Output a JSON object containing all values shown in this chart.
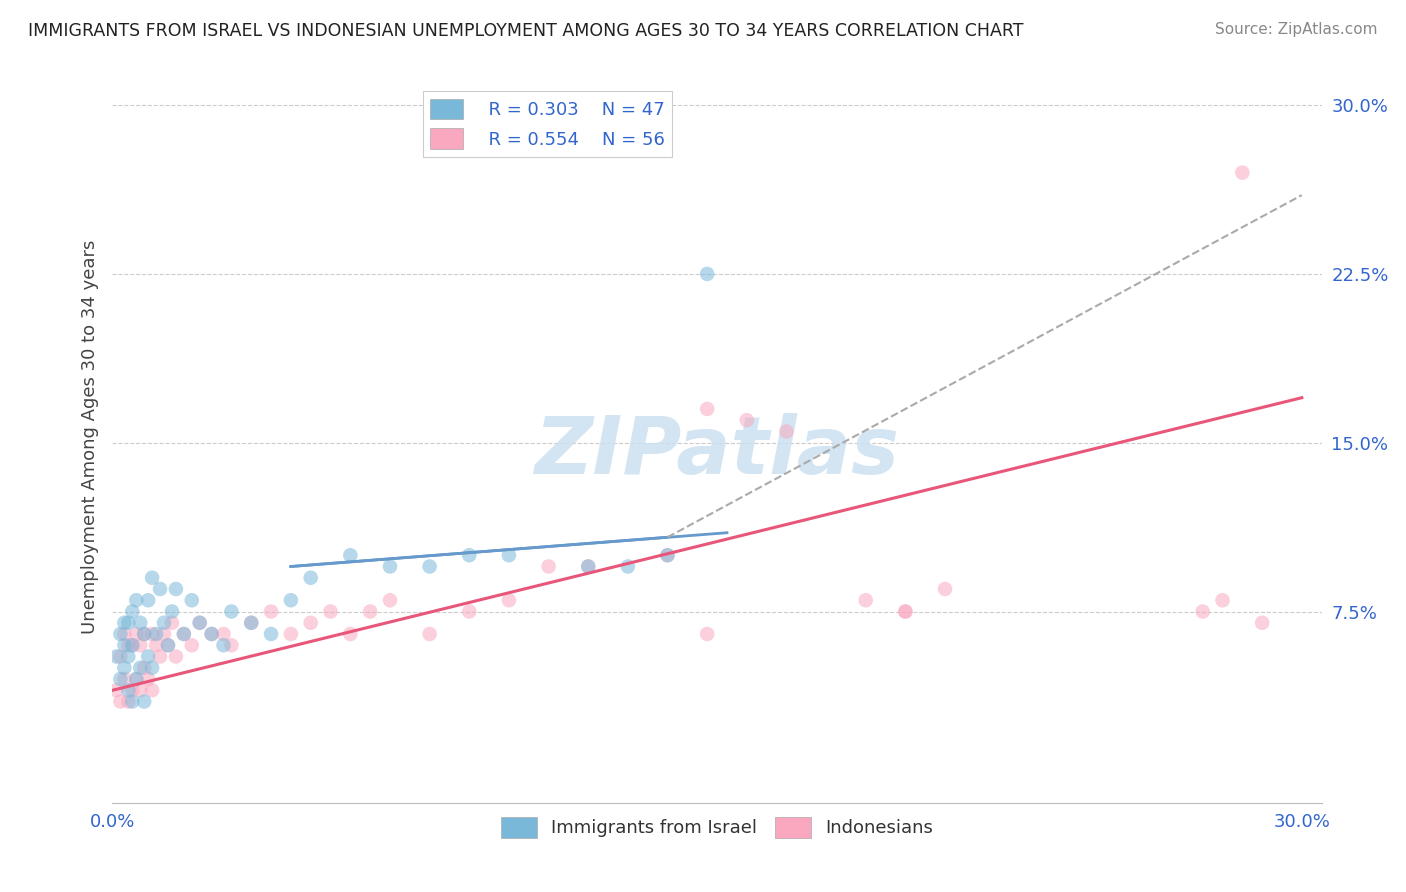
{
  "title": "IMMIGRANTS FROM ISRAEL VS INDONESIAN UNEMPLOYMENT AMONG AGES 30 TO 34 YEARS CORRELATION CHART",
  "source": "Source: ZipAtlas.com",
  "ylabel": "Unemployment Among Ages 30 to 34 years",
  "xlim": [
    0.0,
    0.305
  ],
  "ylim": [
    -0.01,
    0.315
  ],
  "xtick_positions": [
    0.0,
    0.05,
    0.1,
    0.15,
    0.2,
    0.25,
    0.3
  ],
  "xtick_labels": [
    "0.0%",
    "",
    "",
    "",
    "",
    "",
    "30.0%"
  ],
  "yticks_right": [
    0.075,
    0.15,
    0.225,
    0.3
  ],
  "ytick_labels_right": [
    "7.5%",
    "15.0%",
    "22.5%",
    "30.0%"
  ],
  "color_israel": "#7ab8d9",
  "color_indonesia": "#f9a8c0",
  "color_israel_line": "#6699cc",
  "color_indonesia_line": "#e8567a",
  "watermark_color": "#cce0f0",
  "israel_x": [
    0.001,
    0.002,
    0.002,
    0.003,
    0.003,
    0.003,
    0.004,
    0.004,
    0.004,
    0.005,
    0.005,
    0.005,
    0.006,
    0.006,
    0.007,
    0.007,
    0.008,
    0.008,
    0.009,
    0.009,
    0.01,
    0.01,
    0.011,
    0.012,
    0.013,
    0.014,
    0.015,
    0.016,
    0.018,
    0.02,
    0.022,
    0.025,
    0.028,
    0.03,
    0.035,
    0.04,
    0.045,
    0.05,
    0.06,
    0.07,
    0.08,
    0.09,
    0.1,
    0.12,
    0.13,
    0.14,
    0.15
  ],
  "israel_y": [
    0.055,
    0.045,
    0.065,
    0.05,
    0.06,
    0.07,
    0.04,
    0.055,
    0.07,
    0.035,
    0.06,
    0.075,
    0.045,
    0.08,
    0.05,
    0.07,
    0.035,
    0.065,
    0.055,
    0.08,
    0.05,
    0.09,
    0.065,
    0.085,
    0.07,
    0.06,
    0.075,
    0.085,
    0.065,
    0.08,
    0.07,
    0.065,
    0.06,
    0.075,
    0.07,
    0.065,
    0.08,
    0.09,
    0.1,
    0.095,
    0.095,
    0.1,
    0.1,
    0.095,
    0.095,
    0.1,
    0.225
  ],
  "indonesia_x": [
    0.001,
    0.002,
    0.002,
    0.003,
    0.003,
    0.004,
    0.004,
    0.005,
    0.005,
    0.006,
    0.006,
    0.007,
    0.007,
    0.008,
    0.008,
    0.009,
    0.01,
    0.01,
    0.011,
    0.012,
    0.013,
    0.014,
    0.015,
    0.016,
    0.018,
    0.02,
    0.022,
    0.025,
    0.028,
    0.03,
    0.035,
    0.04,
    0.045,
    0.05,
    0.055,
    0.06,
    0.065,
    0.07,
    0.08,
    0.09,
    0.1,
    0.11,
    0.12,
    0.14,
    0.15,
    0.16,
    0.17,
    0.19,
    0.2,
    0.21,
    0.15,
    0.2,
    0.275,
    0.28,
    0.285,
    0.29
  ],
  "indonesia_y": [
    0.04,
    0.035,
    0.055,
    0.045,
    0.065,
    0.035,
    0.06,
    0.04,
    0.06,
    0.045,
    0.065,
    0.04,
    0.06,
    0.05,
    0.065,
    0.045,
    0.04,
    0.065,
    0.06,
    0.055,
    0.065,
    0.06,
    0.07,
    0.055,
    0.065,
    0.06,
    0.07,
    0.065,
    0.065,
    0.06,
    0.07,
    0.075,
    0.065,
    0.07,
    0.075,
    0.065,
    0.075,
    0.08,
    0.065,
    0.075,
    0.08,
    0.095,
    0.095,
    0.1,
    0.165,
    0.16,
    0.155,
    0.08,
    0.075,
    0.085,
    0.065,
    0.075,
    0.075,
    0.08,
    0.27,
    0.07
  ],
  "israel_line_x": [
    0.045,
    0.155
  ],
  "israel_line_y": [
    0.095,
    0.11
  ],
  "indonesia_line_x": [
    0.0,
    0.3
  ],
  "indonesia_line_y": [
    0.04,
    0.17
  ]
}
